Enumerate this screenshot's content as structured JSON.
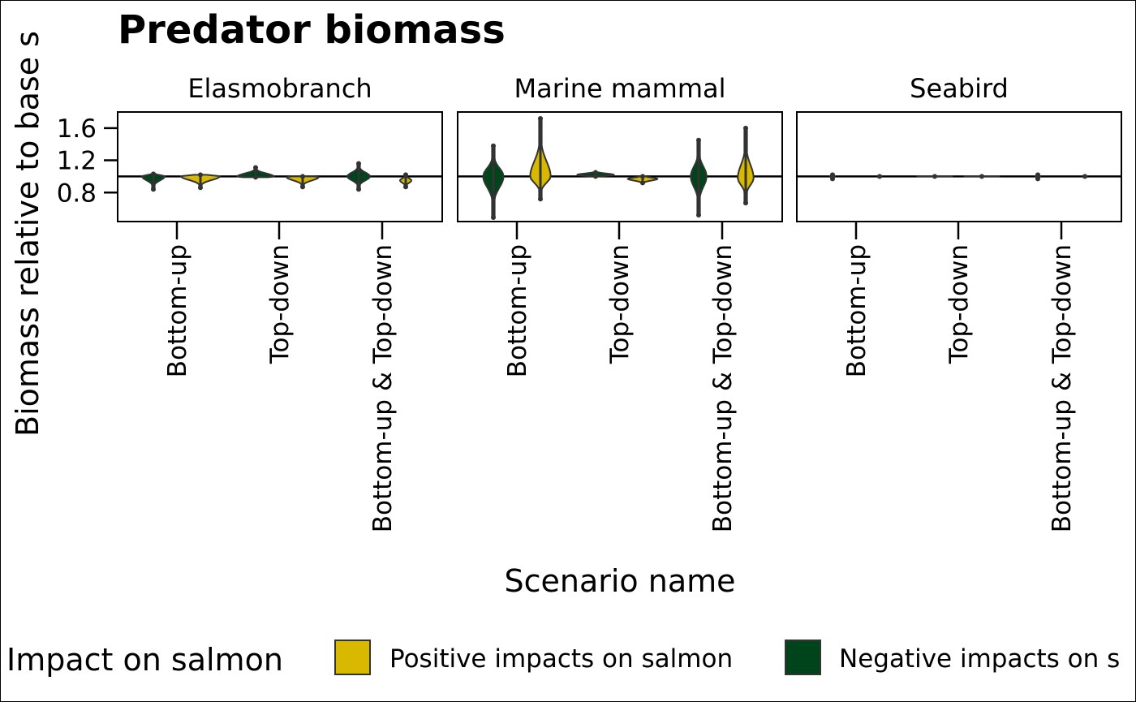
{
  "chart_data": {
    "type": "violin",
    "title": "Predator biomass",
    "ylabel": "Biomass relative to base s",
    "xlabel": "Scenario name",
    "ylim": [
      0.44,
      1.8
    ],
    "yticks": [
      0.8,
      1.2,
      1.6
    ],
    "ytick_labels": [
      "0.8",
      "1.2",
      "1.6"
    ],
    "reference_line": 1.0,
    "categories": [
      "Bottom-up",
      "Top-down",
      "Bottom-up & Top-down"
    ],
    "legend": {
      "title": "Impact on salmon",
      "placement": "bottom",
      "entries": [
        {
          "name": "Positive impacts on salmon",
          "color": "#D9B800"
        },
        {
          "name": "Negative impacts on s",
          "color": "#00441B"
        }
      ]
    },
    "panels": [
      {
        "name": "Elasmobranch",
        "violins": [
          {
            "category": "Bottom-up",
            "impact": "Negative impacts on salmon",
            "min": 0.84,
            "max": 1.03,
            "median": 1.0,
            "width": 0.5
          },
          {
            "category": "Bottom-up",
            "impact": "Positive impacts on salmon",
            "min": 0.86,
            "max": 1.02,
            "median": 1.0,
            "width": 0.85
          },
          {
            "category": "Top-down",
            "impact": "Negative impacts on salmon",
            "min": 0.99,
            "max": 1.11,
            "median": 1.0,
            "width": 0.8
          },
          {
            "category": "Top-down",
            "impact": "Positive impacts on salmon",
            "min": 0.87,
            "max": 1.0,
            "median": 0.99,
            "width": 0.7
          },
          {
            "category": "Bottom-up & Top-down",
            "impact": "Negative impacts on salmon",
            "min": 0.84,
            "max": 1.16,
            "median": 1.0,
            "width": 0.5
          },
          {
            "category": "Bottom-up & Top-down",
            "impact": "Positive impacts on salmon",
            "min": 0.87,
            "max": 1.02,
            "median": 0.95,
            "width": 0.25
          }
        ]
      },
      {
        "name": "Marine mammal",
        "violins": [
          {
            "category": "Bottom-up",
            "impact": "Negative impacts on salmon",
            "min": 0.49,
            "max": 1.38,
            "median": 1.0,
            "width": 0.45
          },
          {
            "category": "Bottom-up",
            "impact": "Positive impacts on salmon",
            "min": 0.72,
            "max": 1.72,
            "median": 1.0,
            "width": 0.45
          },
          {
            "category": "Top-down",
            "impact": "Negative impacts on salmon",
            "min": 1.0,
            "max": 1.05,
            "median": 1.02,
            "width": 0.8
          },
          {
            "category": "Top-down",
            "impact": "Positive impacts on salmon",
            "min": 0.92,
            "max": 1.0,
            "median": 0.97,
            "width": 0.65
          },
          {
            "category": "Bottom-up & Top-down",
            "impact": "Negative impacts on salmon",
            "min": 0.52,
            "max": 1.45,
            "median": 1.0,
            "width": 0.35
          },
          {
            "category": "Bottom-up & Top-down",
            "impact": "Positive impacts on salmon",
            "min": 0.67,
            "max": 1.6,
            "median": 0.98,
            "width": 0.35
          }
        ]
      },
      {
        "name": "Seabird",
        "violins": [
          {
            "category": "Bottom-up",
            "impact": "Negative impacts on salmon",
            "min": 0.97,
            "max": 1.02,
            "median": 1.0,
            "width": 0.1
          },
          {
            "category": "Bottom-up",
            "impact": "Positive impacts on salmon",
            "min": 0.99,
            "max": 1.01,
            "median": 1.0,
            "width": 0.08
          },
          {
            "category": "Top-down",
            "impact": "Negative impacts on salmon",
            "min": 1.0,
            "max": 1.0,
            "median": 1.0,
            "width": 0.8
          },
          {
            "category": "Top-down",
            "impact": "Positive impacts on salmon",
            "min": 1.0,
            "max": 1.0,
            "median": 1.0,
            "width": 0.8
          },
          {
            "category": "Bottom-up & Top-down",
            "impact": "Negative impacts on salmon",
            "min": 0.97,
            "max": 1.02,
            "median": 1.0,
            "width": 0.1
          },
          {
            "category": "Bottom-up & Top-down",
            "impact": "Positive impacts on salmon",
            "min": 0.99,
            "max": 1.01,
            "median": 1.0,
            "width": 0.08
          }
        ]
      }
    ]
  }
}
